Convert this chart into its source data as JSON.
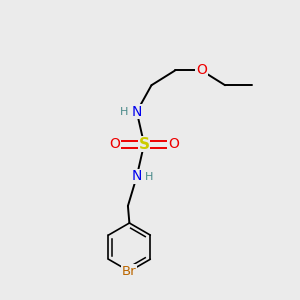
{
  "bg_color": "#ebebeb",
  "atom_colors": {
    "C": "#000000",
    "H": "#4a8a8a",
    "N": "#0000ee",
    "O": "#ee0000",
    "S": "#cccc00",
    "Br": "#bb6600"
  },
  "bond_color": "#000000",
  "fig_size": [
    3.0,
    3.0
  ],
  "dpi": 100
}
